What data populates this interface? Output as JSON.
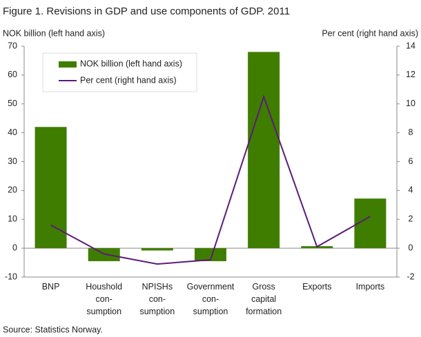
{
  "chart_data": {
    "type": "bar-line",
    "title": "Figure 1. Revisions in GDP and use components of GDP. 2011",
    "y_label": "NOK billion (left hand axis)",
    "y2_label": "Per cent (right hand axis)",
    "source": "Source: Statistics Norway.",
    "categories": [
      [
        "BNP"
      ],
      [
        "Houshold",
        "con-",
        "sumption"
      ],
      [
        "NPISHs",
        "con-",
        "sumption"
      ],
      [
        "Government",
        "con-",
        "sumption"
      ],
      [
        "Gross",
        "capital",
        "formation"
      ],
      [
        "Exports"
      ],
      [
        "Imports"
      ]
    ],
    "series": [
      {
        "name": "NOK billion (left hand axis)",
        "type": "bar",
        "color": "#3f7d00",
        "values": [
          42,
          -4.5,
          -0.8,
          -4.5,
          68,
          0.7,
          17.2
        ]
      },
      {
        "name": "Per cent (right hand axis)",
        "type": "line",
        "axis": "y2",
        "color": "#5c1a78",
        "values": [
          1.6,
          -0.4,
          -1.1,
          -0.8,
          10.5,
          0.1,
          2.2
        ]
      }
    ],
    "ylim": [
      -10,
      70
    ],
    "yticks": [
      -10,
      0,
      10,
      20,
      30,
      40,
      50,
      60,
      70
    ],
    "y2lim": [
      -2,
      14
    ],
    "y2ticks": [
      -2,
      0,
      2,
      4,
      6,
      8,
      10,
      12,
      14
    ],
    "legend": "top-left"
  }
}
